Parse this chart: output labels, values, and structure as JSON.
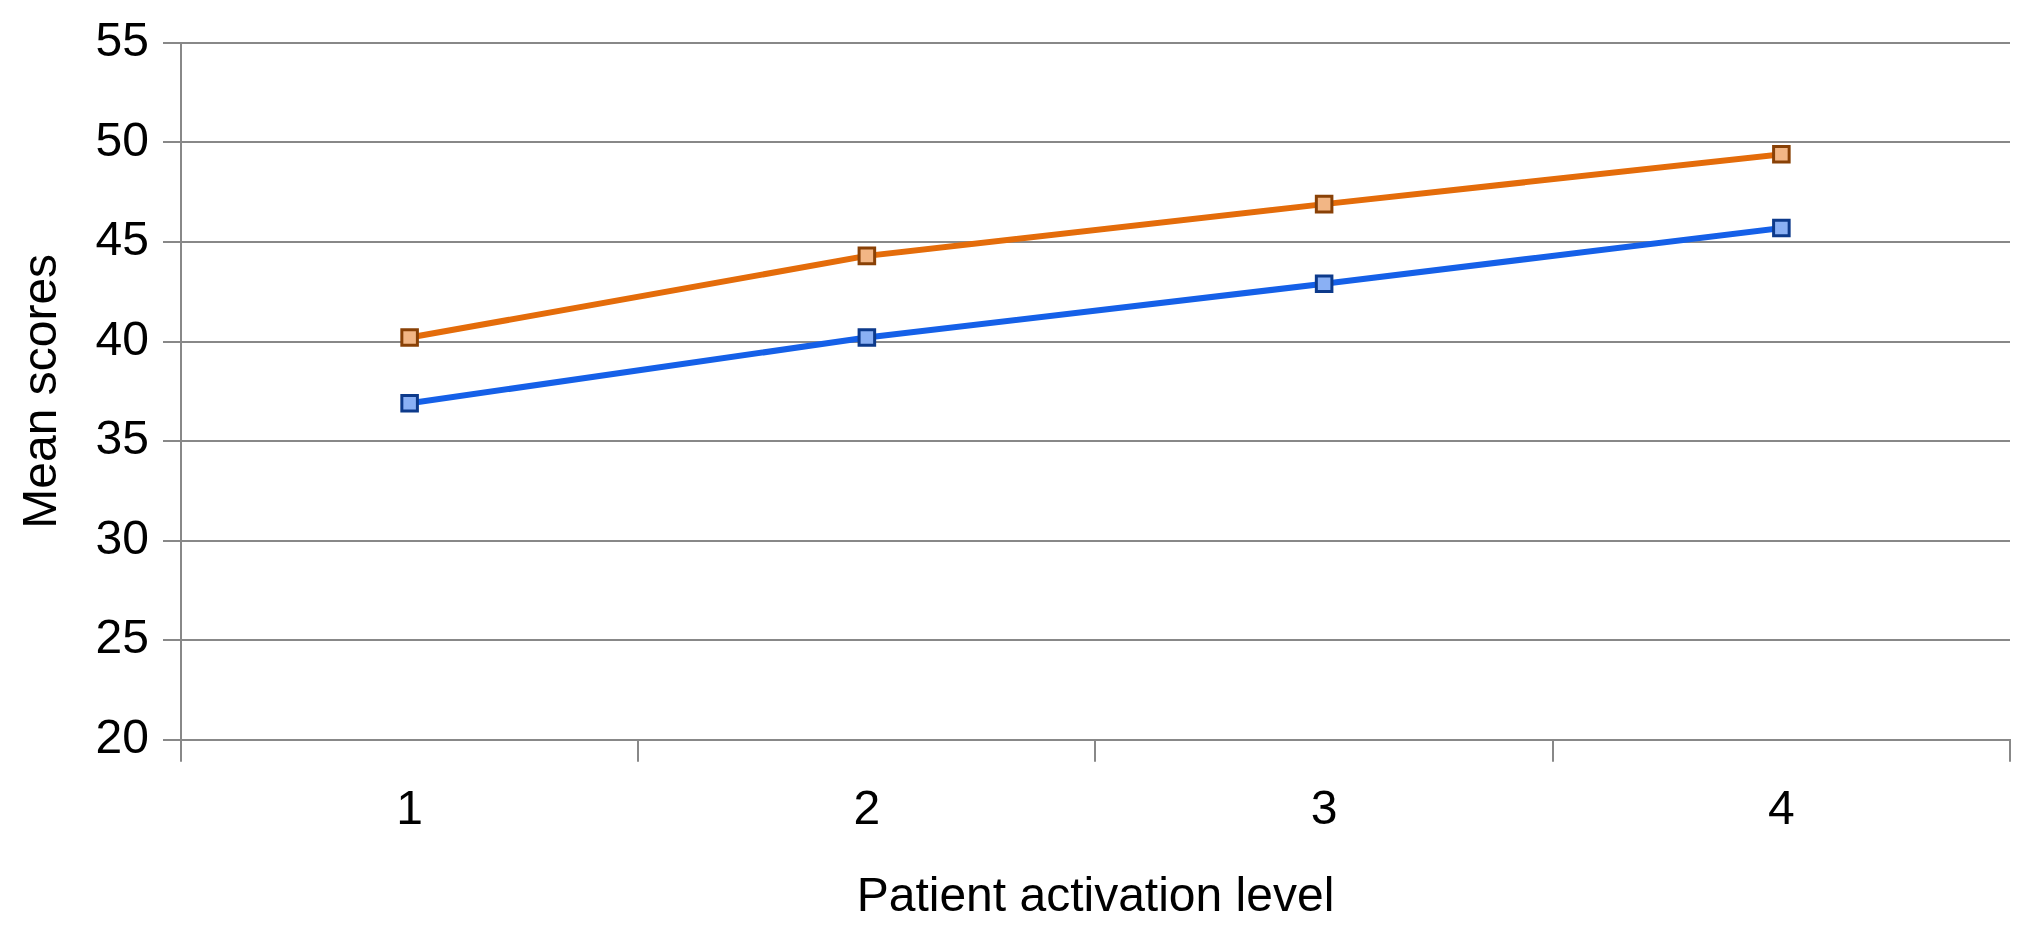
{
  "chart_data": {
    "type": "line",
    "xlabel": "Patient activation level",
    "ylabel": "Mean scores",
    "categories": [
      "1",
      "2",
      "3",
      "4"
    ],
    "series": [
      {
        "color": "#e46c0a",
        "values": [
          40.2,
          44.3,
          46.9,
          49.4
        ]
      },
      {
        "color": "#1560e8",
        "values": [
          36.9,
          40.2,
          42.9,
          45.7
        ]
      }
    ],
    "ylim": [
      20,
      55
    ],
    "yticks": [
      20,
      25,
      30,
      35,
      40,
      45,
      50,
      55
    ],
    "grid": "y",
    "legend": false,
    "marker": "square",
    "line_style": "solid"
  }
}
